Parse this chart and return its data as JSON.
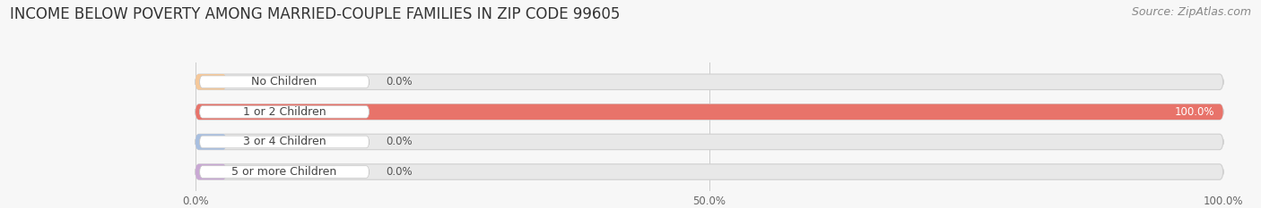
{
  "title": "INCOME BELOW POVERTY AMONG MARRIED-COUPLE FAMILIES IN ZIP CODE 99605",
  "source": "Source: ZipAtlas.com",
  "categories": [
    "No Children",
    "1 or 2 Children",
    "3 or 4 Children",
    "5 or more Children"
  ],
  "values": [
    0.0,
    100.0,
    0.0,
    0.0
  ],
  "bar_colors": [
    "#f5c89a",
    "#e8736a",
    "#a8bfe0",
    "#c9a8d4"
  ],
  "xlim": [
    0,
    100
  ],
  "xticks": [
    0.0,
    50.0,
    100.0
  ],
  "xtick_labels": [
    "0.0%",
    "50.0%",
    "100.0%"
  ],
  "background_color": "#f7f7f7",
  "bar_bg_color": "#e8e8e8",
  "title_fontsize": 12,
  "source_fontsize": 9,
  "label_fontsize": 9,
  "value_fontsize": 8.5
}
